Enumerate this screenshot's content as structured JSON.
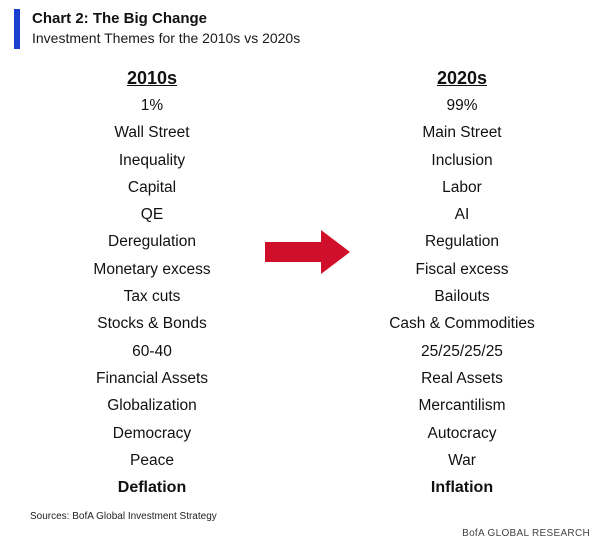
{
  "header": {
    "title": "Chart 2: The Big Change",
    "subtitle": "Investment Themes for the 2010s vs 2020s",
    "accent_color": "#1a3fd1"
  },
  "left_column": {
    "heading": "2010s",
    "items": [
      "1%",
      "Wall Street",
      "Inequality",
      "Capital",
      "QE",
      "Deregulation",
      "Monetary excess",
      "Tax cuts",
      "Stocks & Bonds",
      "60-40",
      "Financial Assets",
      "Globalization",
      "Democracy",
      "Peace",
      "Deflation"
    ]
  },
  "right_column": {
    "heading": "2020s",
    "items": [
      "99%",
      "Main Street",
      "Inclusion",
      "Labor",
      "AI",
      "Regulation",
      "Fiscal excess",
      "Bailouts",
      "Cash & Commodities",
      "25/25/25/25",
      "Real Assets",
      "Mercantilism",
      "Autocracy",
      "War",
      "Inflation"
    ]
  },
  "arrow": {
    "icon": "right-arrow-icon",
    "color": "#d0102a"
  },
  "footer": {
    "source": "Sources:  BofA Global Investment Strategy",
    "brand": "BofA GLOBAL RESEARCH"
  }
}
